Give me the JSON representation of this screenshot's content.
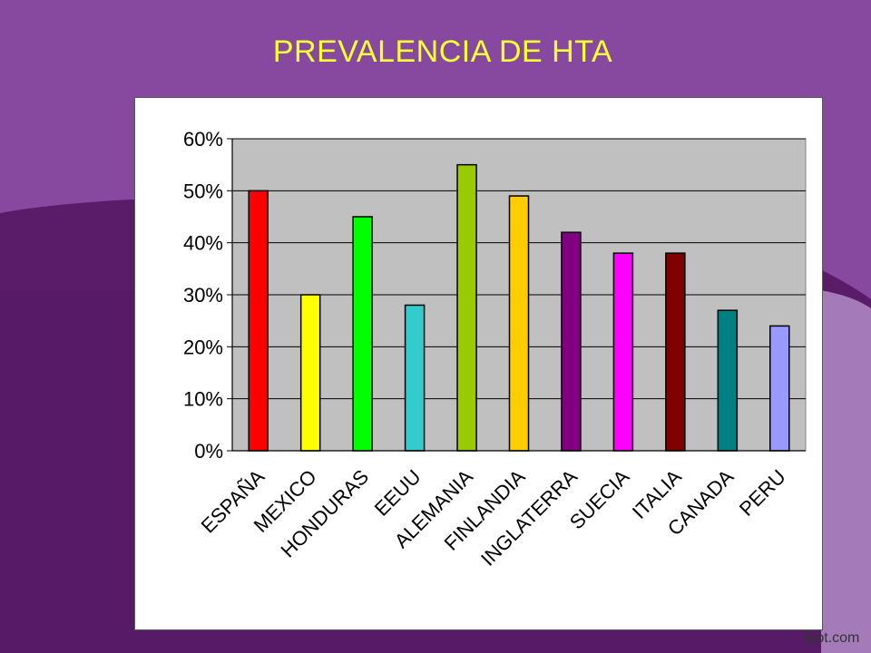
{
  "slide": {
    "title": "PREVALENCIA DE HTA",
    "watermark": "fppt.com",
    "title_color": "#ffff33",
    "background_color": "#7d4597"
  },
  "chart_data": {
    "type": "bar",
    "title": "",
    "xlabel": "",
    "ylabel": "",
    "ylim": [
      0,
      0.6
    ],
    "yticks": [
      "0%",
      "10%",
      "20%",
      "30%",
      "40%",
      "50%",
      "60%"
    ],
    "grid": true,
    "legend": "none",
    "plot_background": "#c0c0c0",
    "categories": [
      "ESPAÑA",
      "MEXICO",
      "HONDURAS",
      "EEUU",
      "ALEMANIA",
      "FINLANDIA",
      "INGLATERRA",
      "SUECIA",
      "ITALIA",
      "CANADA",
      "PERU"
    ],
    "values": [
      0.5,
      0.3,
      0.45,
      0.28,
      0.55,
      0.49,
      0.42,
      0.38,
      0.38,
      0.27,
      0.24
    ],
    "colors": [
      "#ff0000",
      "#ffff00",
      "#00ff00",
      "#33cccc",
      "#99cc00",
      "#ffcc00",
      "#800080",
      "#ff00ff",
      "#800000",
      "#008080",
      "#9999ff"
    ]
  }
}
